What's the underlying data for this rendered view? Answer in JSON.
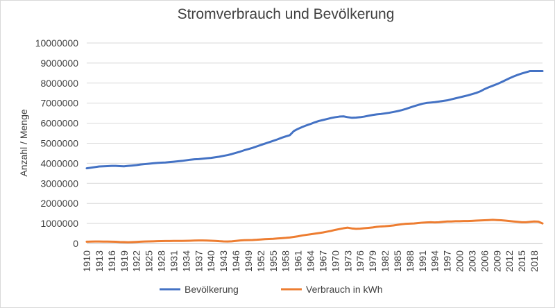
{
  "chart_data": {
    "type": "line",
    "title": "Stromverbrauch und Bevölkerung",
    "ylabel": "Anzahl / Menge",
    "xlabel": "",
    "ylim": [
      0,
      10000000
    ],
    "yticks": [
      "0",
      "1000000",
      "2000000",
      "3000000",
      "4000000",
      "5000000",
      "6000000",
      "7000000",
      "8000000",
      "9000000",
      "10000000"
    ],
    "x": [
      1910,
      1911,
      1912,
      1913,
      1914,
      1915,
      1916,
      1917,
      1918,
      1919,
      1920,
      1921,
      1922,
      1923,
      1924,
      1925,
      1926,
      1927,
      1928,
      1929,
      1930,
      1931,
      1932,
      1933,
      1934,
      1935,
      1936,
      1937,
      1938,
      1939,
      1940,
      1941,
      1942,
      1943,
      1944,
      1945,
      1946,
      1947,
      1948,
      1949,
      1950,
      1951,
      1952,
      1953,
      1954,
      1955,
      1956,
      1957,
      1958,
      1959,
      1960,
      1961,
      1962,
      1963,
      1964,
      1965,
      1966,
      1967,
      1968,
      1969,
      1970,
      1971,
      1972,
      1973,
      1974,
      1975,
      1976,
      1977,
      1978,
      1979,
      1980,
      1981,
      1982,
      1983,
      1984,
      1985,
      1986,
      1987,
      1988,
      1989,
      1990,
      1991,
      1992,
      1993,
      1994,
      1995,
      1996,
      1997,
      1998,
      1999,
      2000,
      2001,
      2002,
      2003,
      2004,
      2005,
      2006,
      2007,
      2008,
      2009,
      2010,
      2011,
      2012,
      2013,
      2014,
      2015,
      2016,
      2017,
      2018,
      2019,
      2020
    ],
    "xtick_labels": [
      "1910",
      "1913",
      "1916",
      "1919",
      "1922",
      "1925",
      "1928",
      "1931",
      "1934",
      "1937",
      "1940",
      "1943",
      "1946",
      "1949",
      "1952",
      "1955",
      "1958",
      "1961",
      "1964",
      "1967",
      "1970",
      "1973",
      "1976",
      "1979",
      "1982",
      "1985",
      "1988",
      "1991",
      "1994",
      "1997",
      "2000",
      "2003",
      "2006",
      "2009",
      "2012",
      "2015",
      "2018"
    ],
    "series": [
      {
        "name": "Bevölkerung",
        "color": "#4472c4",
        "values": [
          3750000,
          3780000,
          3810000,
          3840000,
          3850000,
          3860000,
          3870000,
          3870000,
          3860000,
          3850000,
          3870000,
          3890000,
          3910000,
          3940000,
          3960000,
          3980000,
          4000000,
          4020000,
          4030000,
          4040000,
          4060000,
          4080000,
          4100000,
          4120000,
          4150000,
          4180000,
          4200000,
          4210000,
          4230000,
          4250000,
          4270000,
          4300000,
          4330000,
          4370000,
          4410000,
          4460000,
          4520000,
          4580000,
          4650000,
          4710000,
          4770000,
          4840000,
          4910000,
          4980000,
          5050000,
          5120000,
          5190000,
          5270000,
          5340000,
          5400000,
          5610000,
          5720000,
          5810000,
          5890000,
          5960000,
          6040000,
          6110000,
          6160000,
          6210000,
          6260000,
          6300000,
          6330000,
          6340000,
          6300000,
          6270000,
          6280000,
          6300000,
          6330000,
          6370000,
          6410000,
          6440000,
          6460000,
          6490000,
          6520000,
          6560000,
          6600000,
          6650000,
          6710000,
          6780000,
          6850000,
          6910000,
          6970000,
          7010000,
          7030000,
          7050000,
          7080000,
          7110000,
          7140000,
          7190000,
          7240000,
          7290000,
          7340000,
          7390000,
          7450000,
          7510000,
          7590000,
          7700000,
          7790000,
          7870000,
          7950000,
          8040000,
          8140000,
          8240000,
          8330000,
          8410000,
          8480000,
          8540000,
          8600000,
          8600000,
          8600000,
          8600000
        ]
      },
      {
        "name": "Verbrauch in kWh",
        "color": "#ed7d31",
        "values": [
          90000,
          95000,
          100000,
          100000,
          95000,
          95000,
          90000,
          85000,
          75000,
          70000,
          60000,
          70000,
          80000,
          90000,
          100000,
          105000,
          110000,
          115000,
          120000,
          125000,
          125000,
          130000,
          130000,
          130000,
          135000,
          140000,
          145000,
          150000,
          150000,
          145000,
          140000,
          130000,
          115000,
          105000,
          100000,
          110000,
          130000,
          150000,
          165000,
          170000,
          175000,
          185000,
          200000,
          215000,
          225000,
          235000,
          250000,
          265000,
          280000,
          300000,
          330000,
          360000,
          400000,
          430000,
          460000,
          490000,
          520000,
          550000,
          590000,
          630000,
          680000,
          720000,
          760000,
          790000,
          750000,
          730000,
          740000,
          760000,
          780000,
          800000,
          830000,
          850000,
          860000,
          880000,
          900000,
          930000,
          960000,
          980000,
          990000,
          1000000,
          1020000,
          1040000,
          1050000,
          1060000,
          1050000,
          1060000,
          1080000,
          1100000,
          1100000,
          1110000,
          1110000,
          1120000,
          1120000,
          1130000,
          1140000,
          1150000,
          1160000,
          1170000,
          1180000,
          1170000,
          1160000,
          1140000,
          1120000,
          1100000,
          1080000,
          1060000,
          1060000,
          1080000,
          1100000,
          1090000,
          1000000
        ]
      }
    ],
    "grid": true,
    "legend_position": "bottom"
  }
}
